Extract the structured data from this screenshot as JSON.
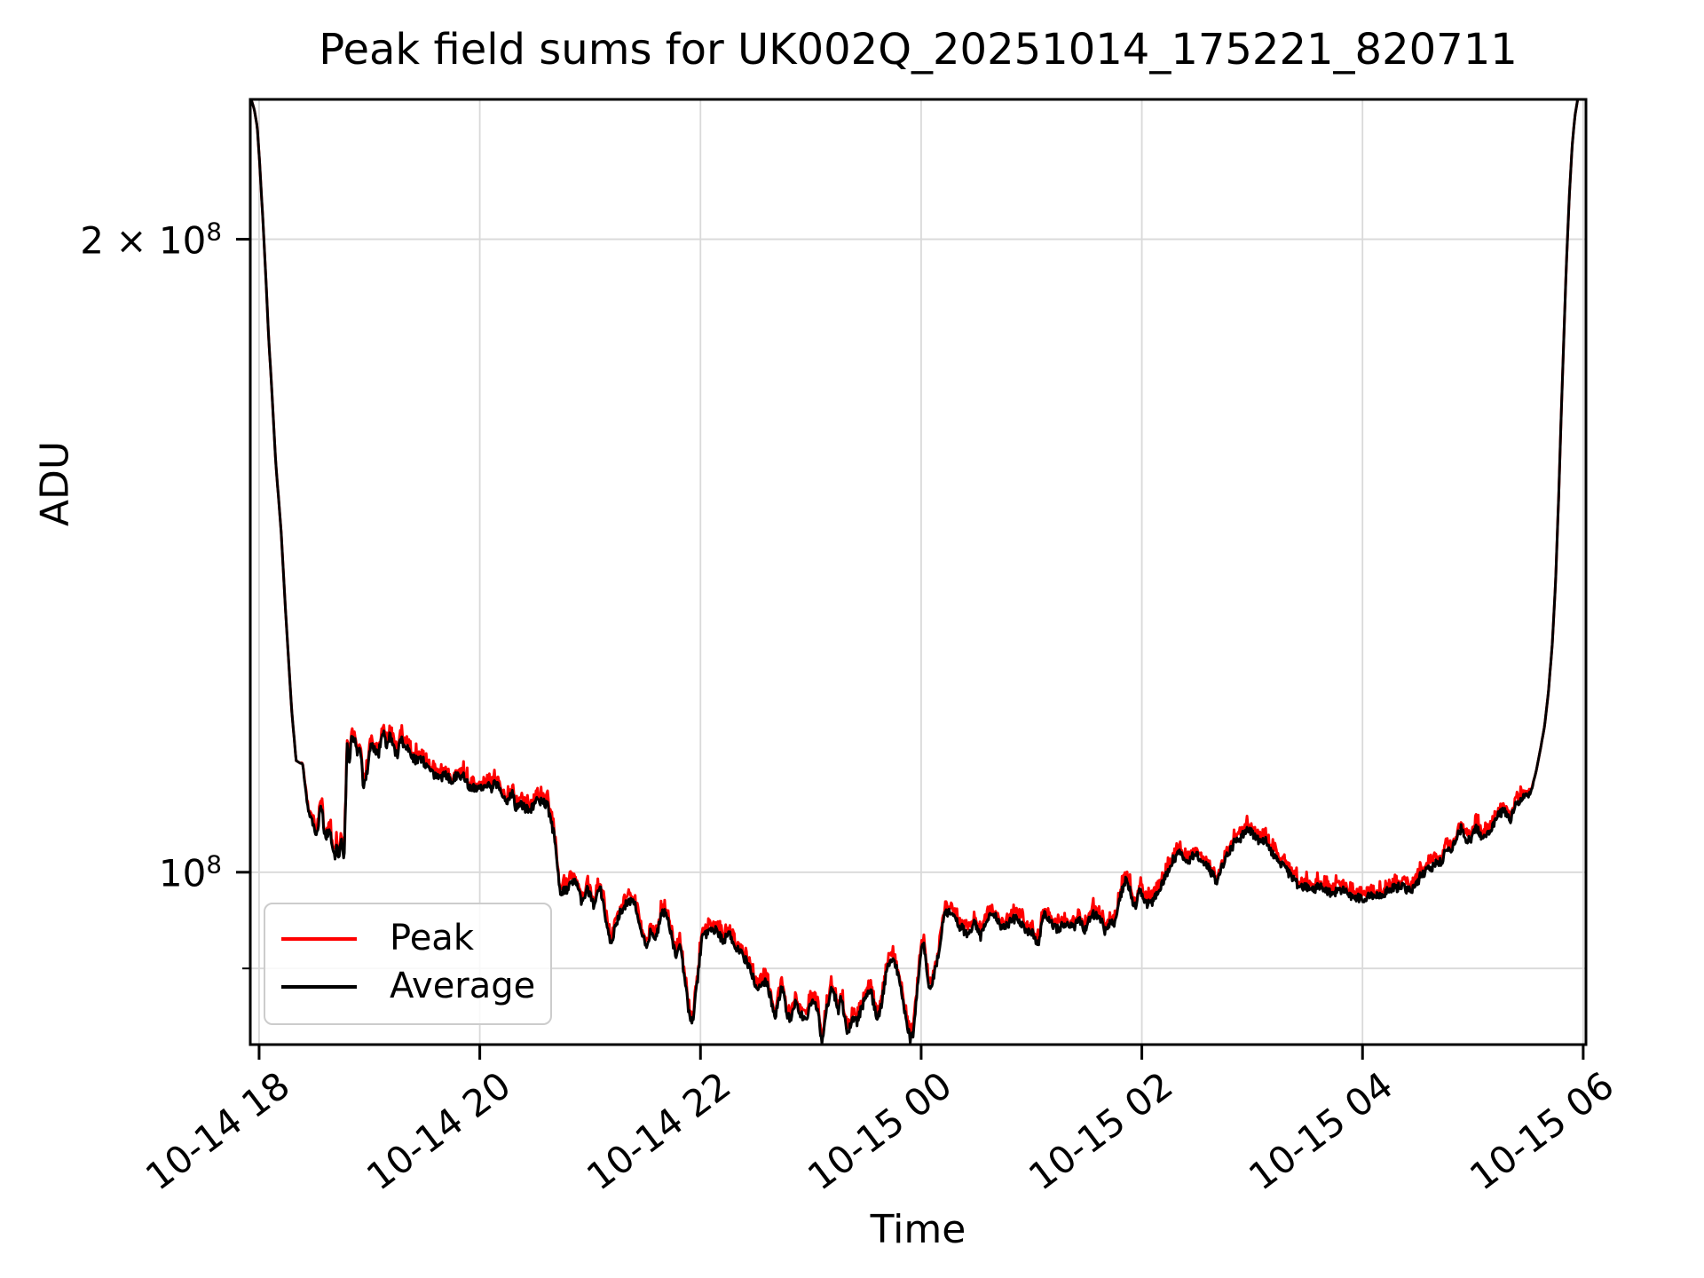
{
  "chart_data": {
    "type": "line",
    "title": "Peak field sums for UK002Q_20251014_175221_820711",
    "xlabel": "Time",
    "ylabel": "ADU",
    "yscale": "log",
    "grid": true,
    "grid_color": "#d9d9d9",
    "ylim": [
      82800000,
      233100000
    ],
    "xlim_hours": [
      17.92,
      30.025
    ],
    "x_unit": "hours since 2025-10-14 00:00",
    "x_ticks": [
      {
        "hours": 18,
        "label": "10-14 18"
      },
      {
        "hours": 20,
        "label": "10-14 20"
      },
      {
        "hours": 22,
        "label": "10-14 22"
      },
      {
        "hours": 24,
        "label": "10-15 00"
      },
      {
        "hours": 26,
        "label": "10-15 02"
      },
      {
        "hours": 28,
        "label": "10-15 04"
      },
      {
        "hours": 30,
        "label": "10-15 06"
      }
    ],
    "y_ticks": [
      {
        "value": 200000000,
        "label_base": "2 × 10",
        "label_exp": "8"
      },
      {
        "value": 100000000,
        "label_base": "10",
        "label_exp": "8"
      }
    ],
    "y_minor_ticks": [
      90000000
    ],
    "legend_position": "lower left",
    "values_unit": "1e8 ADU",
    "series": [
      {
        "name": "Peak",
        "color": "#ff0000",
        "derived": "average_plus_positive_spikes",
        "spike_pct_range": [
          0.2,
          1.4
        ]
      },
      {
        "name": "Average",
        "color": "#000000",
        "points": [
          [
            17.92,
            2.45
          ],
          [
            17.928,
            2.331
          ],
          [
            17.955,
            2.307
          ],
          [
            17.983,
            2.262
          ],
          [
            18.005,
            2.175
          ],
          [
            18.035,
            2.039
          ],
          [
            18.065,
            1.9
          ],
          [
            18.085,
            1.803
          ],
          [
            18.115,
            1.695
          ],
          [
            18.15,
            1.569
          ],
          [
            18.2,
            1.451
          ],
          [
            18.245,
            1.317
          ],
          [
            18.295,
            1.195
          ],
          [
            18.335,
            1.13
          ],
          [
            18.395,
            1.125
          ],
          [
            18.44,
            1.073
          ],
          [
            18.495,
            1.053
          ],
          [
            18.525,
            1.043
          ],
          [
            18.56,
            1.076
          ],
          [
            18.6,
            1.04
          ],
          [
            18.64,
            1.05
          ],
          [
            18.68,
            1.018
          ],
          [
            18.705,
            1.031
          ],
          [
            18.725,
            1.013
          ],
          [
            18.745,
            1.043
          ],
          [
            18.77,
            1.013
          ],
          [
            18.785,
            1.084
          ],
          [
            18.8,
            1.157
          ],
          [
            18.815,
            1.127
          ],
          [
            18.84,
            1.164
          ],
          [
            18.865,
            1.16
          ],
          [
            18.89,
            1.138
          ],
          [
            18.915,
            1.152
          ],
          [
            18.945,
            1.103
          ],
          [
            18.975,
            1.116
          ],
          [
            19.01,
            1.144
          ],
          [
            19.045,
            1.149
          ],
          [
            19.08,
            1.138
          ],
          [
            19.12,
            1.172
          ],
          [
            19.155,
            1.149
          ],
          [
            19.185,
            1.163
          ],
          [
            19.215,
            1.144
          ],
          [
            19.255,
            1.136
          ],
          [
            19.29,
            1.157
          ],
          [
            19.32,
            1.144
          ],
          [
            19.365,
            1.147
          ],
          [
            19.415,
            1.127
          ],
          [
            19.475,
            1.131
          ],
          [
            19.525,
            1.124
          ],
          [
            19.575,
            1.116
          ],
          [
            19.625,
            1.109
          ],
          [
            19.69,
            1.116
          ],
          [
            19.74,
            1.108
          ],
          [
            19.79,
            1.109
          ],
          [
            19.845,
            1.116
          ],
          [
            19.9,
            1.101
          ],
          [
            19.95,
            1.096
          ],
          [
            20.015,
            1.096
          ],
          [
            20.06,
            1.103
          ],
          [
            20.11,
            1.093
          ],
          [
            20.14,
            1.103
          ],
          [
            20.19,
            1.091
          ],
          [
            20.245,
            1.084
          ],
          [
            20.295,
            1.091
          ],
          [
            20.325,
            1.077
          ],
          [
            20.375,
            1.082
          ],
          [
            20.415,
            1.07
          ],
          [
            20.46,
            1.07
          ],
          [
            20.51,
            1.08
          ],
          [
            20.565,
            1.084
          ],
          [
            20.615,
            1.075
          ],
          [
            20.67,
            1.043
          ],
          [
            20.71,
            1.001
          ],
          [
            20.725,
            0.981
          ],
          [
            20.79,
            0.983
          ],
          [
            20.855,
            0.99
          ],
          [
            20.925,
            0.969
          ],
          [
            20.975,
            0.983
          ],
          [
            21.03,
            0.963
          ],
          [
            21.095,
            0.981
          ],
          [
            21.15,
            0.949
          ],
          [
            21.19,
            0.925
          ],
          [
            21.27,
            0.958
          ],
          [
            21.325,
            0.965
          ],
          [
            21.39,
            0.972
          ],
          [
            21.455,
            0.943
          ],
          [
            21.51,
            0.925
          ],
          [
            21.55,
            0.938
          ],
          [
            21.59,
            0.927
          ],
          [
            21.65,
            0.955
          ],
          [
            21.69,
            0.958
          ],
          [
            21.75,
            0.925
          ],
          [
            21.775,
            0.912
          ],
          [
            21.815,
            0.925
          ],
          [
            21.855,
            0.894
          ],
          [
            21.895,
            0.857
          ],
          [
            21.93,
            0.852
          ],
          [
            21.97,
            0.883
          ],
          [
            22.015,
            0.93
          ],
          [
            22.075,
            0.938
          ],
          [
            22.14,
            0.939
          ],
          [
            22.21,
            0.927
          ],
          [
            22.26,
            0.934
          ],
          [
            22.34,
            0.916
          ],
          [
            22.395,
            0.909
          ],
          [
            22.46,
            0.897
          ],
          [
            22.515,
            0.883
          ],
          [
            22.575,
            0.889
          ],
          [
            22.62,
            0.876
          ],
          [
            22.68,
            0.857
          ],
          [
            22.735,
            0.881
          ],
          [
            22.785,
            0.859
          ],
          [
            22.82,
            0.851
          ],
          [
            22.86,
            0.868
          ],
          [
            22.9,
            0.858
          ],
          [
            22.955,
            0.846
          ],
          [
            23.02,
            0.871
          ],
          [
            23.06,
            0.86
          ],
          [
            23.1,
            0.828
          ],
          [
            23.15,
            0.864
          ],
          [
            23.195,
            0.886
          ],
          [
            23.25,
            0.857
          ],
          [
            23.275,
            0.871
          ],
          [
            23.33,
            0.837
          ],
          [
            23.38,
            0.857
          ],
          [
            23.42,
            0.846
          ],
          [
            23.475,
            0.867
          ],
          [
            23.54,
            0.88
          ],
          [
            23.595,
            0.854
          ],
          [
            23.645,
            0.867
          ],
          [
            23.7,
            0.906
          ],
          [
            23.74,
            0.905
          ],
          [
            23.78,
            0.897
          ],
          [
            23.815,
            0.883
          ],
          [
            23.855,
            0.857
          ],
          [
            23.9,
            0.829
          ],
          [
            23.93,
            0.839
          ],
          [
            23.995,
            0.912
          ],
          [
            24.02,
            0.923
          ],
          [
            24.08,
            0.88
          ],
          [
            24.135,
            0.903
          ],
          [
            24.175,
            0.932
          ],
          [
            24.215,
            0.955
          ],
          [
            24.255,
            0.957
          ],
          [
            24.3,
            0.953
          ],
          [
            24.36,
            0.941
          ],
          [
            24.42,
            0.93
          ],
          [
            24.48,
            0.946
          ],
          [
            24.535,
            0.929
          ],
          [
            24.59,
            0.946
          ],
          [
            24.64,
            0.957
          ],
          [
            24.705,
            0.946
          ],
          [
            24.76,
            0.938
          ],
          [
            24.815,
            0.95
          ],
          [
            24.88,
            0.951
          ],
          [
            24.945,
            0.937
          ],
          [
            25.0,
            0.937
          ],
          [
            25.055,
            0.921
          ],
          [
            25.12,
            0.955
          ],
          [
            25.185,
            0.944
          ],
          [
            25.24,
            0.941
          ],
          [
            25.305,
            0.948
          ],
          [
            25.36,
            0.941
          ],
          [
            25.425,
            0.951
          ],
          [
            25.48,
            0.941
          ],
          [
            25.545,
            0.955
          ],
          [
            25.6,
            0.951
          ],
          [
            25.665,
            0.941
          ],
          [
            25.72,
            0.944
          ],
          [
            25.76,
            0.944
          ],
          [
            25.81,
            0.974
          ],
          [
            25.86,
            0.991
          ],
          [
            25.93,
            0.964
          ],
          [
            25.98,
            0.976
          ],
          [
            26.035,
            0.967
          ],
          [
            26.1,
            0.972
          ],
          [
            26.165,
            0.983
          ],
          [
            26.23,
            0.998
          ],
          [
            26.285,
            1.018
          ],
          [
            26.35,
            1.022
          ],
          [
            26.405,
            1.011
          ],
          [
            26.485,
            1.019
          ],
          [
            26.55,
            1.012
          ],
          [
            26.615,
            1.001
          ],
          [
            26.68,
            0.994
          ],
          [
            26.725,
            1.005
          ],
          [
            26.805,
            1.028
          ],
          [
            26.885,
            1.038
          ],
          [
            26.95,
            1.045
          ],
          [
            26.99,
            1.044
          ],
          [
            27.045,
            1.033
          ],
          [
            27.11,
            1.035
          ],
          [
            27.175,
            1.023
          ],
          [
            27.245,
            1.011
          ],
          [
            27.325,
            0.998
          ],
          [
            27.405,
            0.989
          ],
          [
            27.46,
            0.983
          ],
          [
            27.525,
            0.981
          ],
          [
            27.605,
            0.986
          ],
          [
            27.685,
            0.979
          ],
          [
            27.765,
            0.976
          ],
          [
            27.845,
            0.981
          ],
          [
            27.925,
            0.976
          ],
          [
            28.005,
            0.972
          ],
          [
            28.085,
            0.976
          ],
          [
            28.15,
            0.972
          ],
          [
            28.245,
            0.981
          ],
          [
            28.325,
            0.983
          ],
          [
            28.405,
            0.979
          ],
          [
            28.485,
            0.99
          ],
          [
            28.565,
            0.998
          ],
          [
            28.615,
            1.005
          ],
          [
            28.685,
            1.011
          ],
          [
            28.75,
            1.02
          ],
          [
            28.805,
            1.028
          ],
          [
            28.87,
            1.041
          ],
          [
            28.9,
            1.051
          ],
          [
            28.95,
            1.035
          ],
          [
            29.03,
            1.048
          ],
          [
            29.095,
            1.038
          ],
          [
            29.18,
            1.055
          ],
          [
            29.245,
            1.063
          ],
          [
            29.285,
            1.068
          ],
          [
            29.335,
            1.059
          ],
          [
            29.385,
            1.081
          ],
          [
            29.43,
            1.084
          ],
          [
            29.46,
            1.091
          ],
          [
            29.5,
            1.087
          ],
          [
            29.535,
            1.096
          ],
          [
            29.575,
            1.118
          ],
          [
            29.615,
            1.146
          ],
          [
            29.65,
            1.174
          ],
          [
            29.685,
            1.218
          ],
          [
            29.72,
            1.285
          ],
          [
            29.75,
            1.375
          ],
          [
            29.775,
            1.494
          ],
          [
            29.8,
            1.647
          ],
          [
            29.825,
            1.798
          ],
          [
            29.85,
            1.962
          ],
          [
            29.875,
            2.101
          ],
          [
            29.9,
            2.215
          ],
          [
            29.925,
            2.29
          ],
          [
            29.95,
            2.331
          ],
          [
            29.975,
            2.42
          ],
          [
            30.025,
            2.5
          ]
        ]
      }
    ],
    "noise": {
      "black_jitter_pct": 0.85,
      "red_spike_pct_max": 1.4,
      "window_hours": [
        18.37,
        29.56
      ]
    }
  },
  "legend": {
    "items": [
      {
        "label": "Peak",
        "color": "#ff0000"
      },
      {
        "label": "Average",
        "color": "#000000"
      }
    ]
  }
}
